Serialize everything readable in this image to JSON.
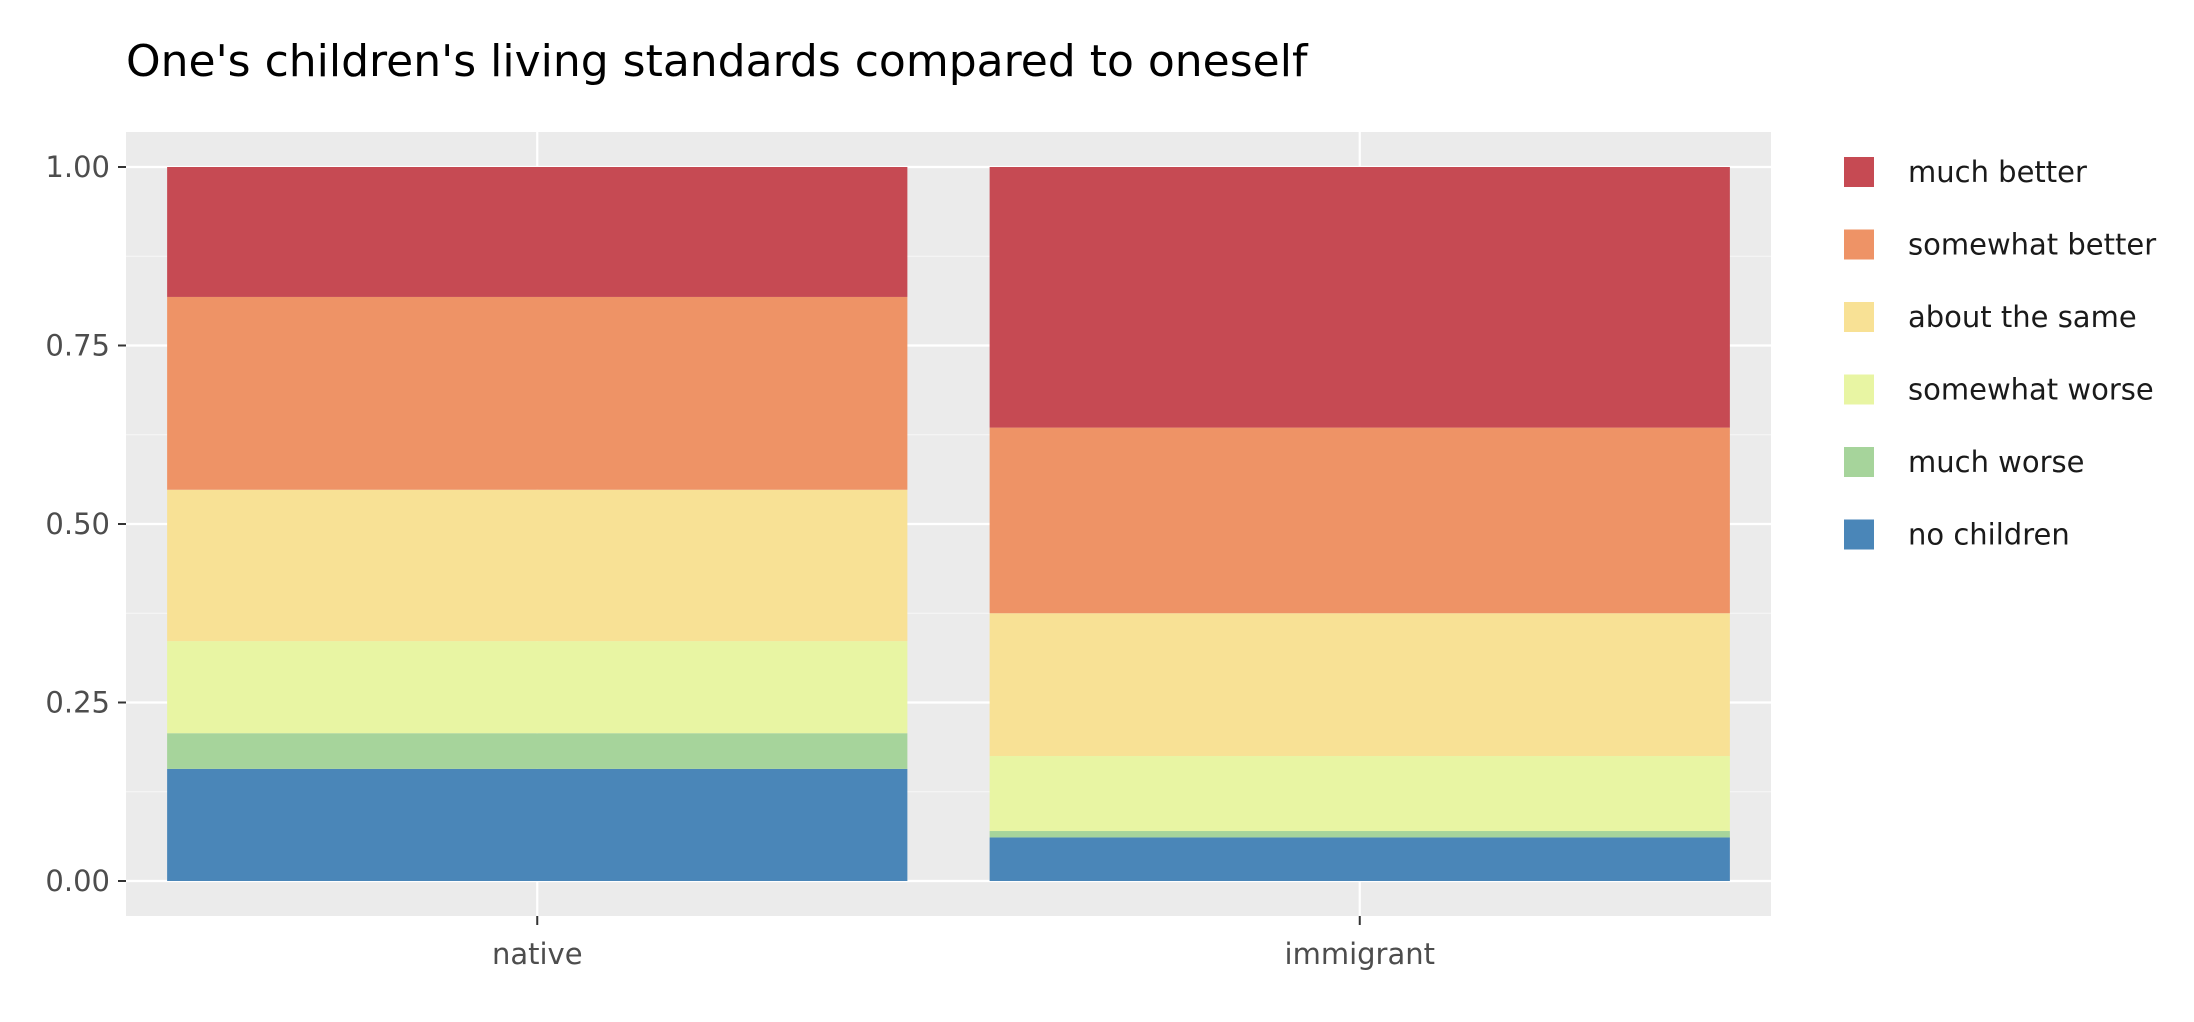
{
  "chart_data": {
    "type": "bar",
    "stacked": true,
    "title": "One's children's living standards compared to oneself",
    "xlabel": "",
    "ylabel": "",
    "categories": [
      "native",
      "immigrant"
    ],
    "ylim": [
      0,
      1
    ],
    "y_ticks": [
      0,
      0.25,
      0.5,
      0.75,
      1
    ],
    "y_tick_labels": [
      "0.00",
      "0.25",
      "0.50",
      "0.75",
      "1.00"
    ],
    "grid": true,
    "legend_position": "right",
    "series": [
      {
        "name": "no children",
        "color": "#4a86b8",
        "values": [
          0.157,
          0.061
        ]
      },
      {
        "name": "much worse",
        "color": "#a6d49b",
        "values": [
          0.05,
          0.009
        ]
      },
      {
        "name": "somewhat worse",
        "color": "#e8f5a3",
        "values": [
          0.129,
          0.105
        ]
      },
      {
        "name": "about the same",
        "color": "#f8e195",
        "values": [
          0.212,
          0.2
        ]
      },
      {
        "name": "somewhat better",
        "color": "#ee9366",
        "values": [
          0.27,
          0.26
        ]
      },
      {
        "name": "much better",
        "color": "#c64a53",
        "values": [
          0.182,
          0.365
        ]
      }
    ],
    "legend_order": [
      "much better",
      "somewhat better",
      "about the same",
      "somewhat worse",
      "much worse",
      "no children"
    ]
  }
}
